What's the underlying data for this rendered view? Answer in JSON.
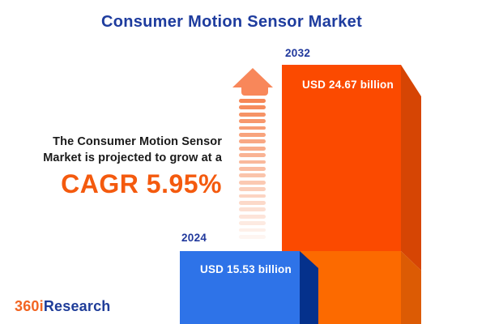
{
  "title": "Consumer Motion Sensor Market",
  "annotation": {
    "line1": "The Consumer Motion Sensor",
    "line2": "Market is projected to grow at a",
    "cagr": "CAGR 5.95%"
  },
  "bars": {
    "y2032": {
      "year": "2032",
      "value": "USD 24.67 billion"
    },
    "y2024": {
      "year": "2024",
      "value": "USD 15.53 billion"
    }
  },
  "logo": {
    "prefix": "360i",
    "suffix": "Research"
  },
  "colors": {
    "title_blue": "#1E3C9E",
    "year_blue": "#20389C",
    "text_dark": "#1A1A1A",
    "cagr_orange": "#F45A0E",
    "bar2032_front": "#FB4A00",
    "bar2032_front_lower": "#FC6A00",
    "bar2032_side": "#D64504",
    "bar2032_side_lower": "#DC5B04",
    "bar2024_front": "#2E73E8",
    "bar2024_side": "#05318C",
    "arrow_head": "#F8875A",
    "arrow_stripe": "#F5814D",
    "logo_orange": "#F26522",
    "logo_blue": "#1F3D99"
  },
  "chart_data": {
    "type": "bar",
    "title": "Consumer Motion Sensor Market",
    "categories": [
      "2024",
      "2032"
    ],
    "values": [
      15.53,
      24.67
    ],
    "unit": "USD billion",
    "value_labels": [
      "USD 15.53 billion",
      "USD 24.67 billion"
    ],
    "cagr_percent": 5.95,
    "annotation": "The Consumer Motion Sensor Market is projected to grow at a CAGR 5.95%",
    "orientation": "vertical",
    "axes": "none",
    "legend": "none",
    "series_colors": {
      "2024": "#2E73E8",
      "2032": "#FB4A00"
    }
  }
}
